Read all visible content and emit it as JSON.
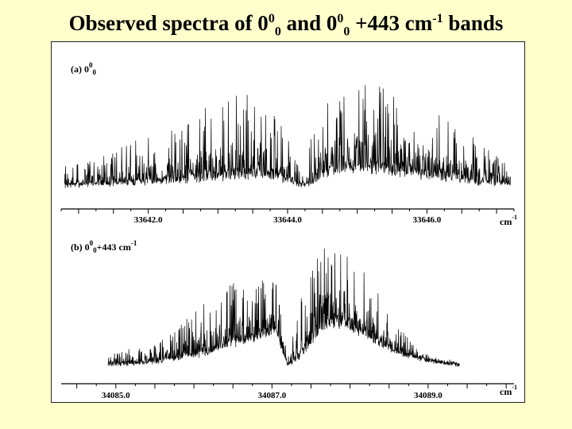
{
  "title": {
    "prefix": "Observed spectra of 0",
    "sup1": "0",
    "sub1": "0",
    "middle": " and 0",
    "sup2": "0",
    "sub2": "0",
    "suffix": " +443 cm",
    "sup3": "-1",
    "end": " bands"
  },
  "chart_data": [
    {
      "type": "line",
      "panel_label": {
        "prefix": "(a) 0",
        "sup": "0",
        "sub": "0",
        "suffix": ""
      },
      "xlabel": {
        "text": "cm",
        "sup": "-1"
      },
      "xlim": [
        33640.75,
        33647.25
      ],
      "x_ticks": [
        33642.0,
        33644.0,
        33646.0
      ],
      "x_tick_labels": [
        "33642.0",
        "33644.0",
        "33646.0"
      ],
      "series": [
        {
          "color": "#000000",
          "envelope": {
            "x": [
              33640.8,
              33641.3,
              33641.8,
              33642.3,
              33642.8,
              33643.2,
              33643.5,
              33643.8,
              33644.0,
              33644.2,
              33644.4,
              33644.6,
              33644.9,
              33645.3,
              33645.8,
              33646.3,
              33646.8,
              33647.2
            ],
            "baseline": [
              0.02,
              0.03,
              0.04,
              0.05,
              0.07,
              0.08,
              0.09,
              0.08,
              0.06,
              0.02,
              0.05,
              0.12,
              0.14,
              0.13,
              0.1,
              0.07,
              0.04,
              0.03
            ],
            "peak": [
              0.2,
              0.3,
              0.42,
              0.55,
              0.72,
              0.85,
              0.86,
              0.72,
              0.5,
              0.12,
              0.6,
              0.8,
              0.98,
              0.95,
              0.82,
              0.62,
              0.38,
              0.22
            ]
          }
        }
      ]
    },
    {
      "type": "line",
      "panel_label": {
        "prefix": "(b) 0",
        "sup": "0",
        "sub": "0",
        "suffix": "+443 cm",
        "sup2": "-1"
      },
      "xlabel": {
        "text": "cm",
        "sup": "-1"
      },
      "xlim": [
        34084.3,
        34090.1
      ],
      "x_ticks": [
        34085.0,
        34087.0,
        34089.0
      ],
      "x_tick_labels": [
        "34085.0",
        "34087.0",
        "34089.0"
      ],
      "series": [
        {
          "color": "#000000",
          "envelope": {
            "x": [
              34084.9,
              34085.3,
              34085.7,
              34086.1,
              34086.5,
              34086.8,
              34087.05,
              34087.2,
              34087.35,
              34087.6,
              34087.9,
              34088.2,
              34088.6,
              34089.0,
              34089.4
            ],
            "baseline": [
              0.02,
              0.03,
              0.05,
              0.09,
              0.16,
              0.2,
              0.25,
              0.02,
              0.06,
              0.25,
              0.3,
              0.22,
              0.1,
              0.05,
              0.02
            ],
            "peak": [
              0.1,
              0.15,
              0.25,
              0.48,
              0.62,
              0.66,
              0.7,
              0.05,
              0.52,
              0.9,
              1.0,
              0.72,
              0.32,
              0.1,
              0.04
            ]
          }
        }
      ]
    }
  ]
}
